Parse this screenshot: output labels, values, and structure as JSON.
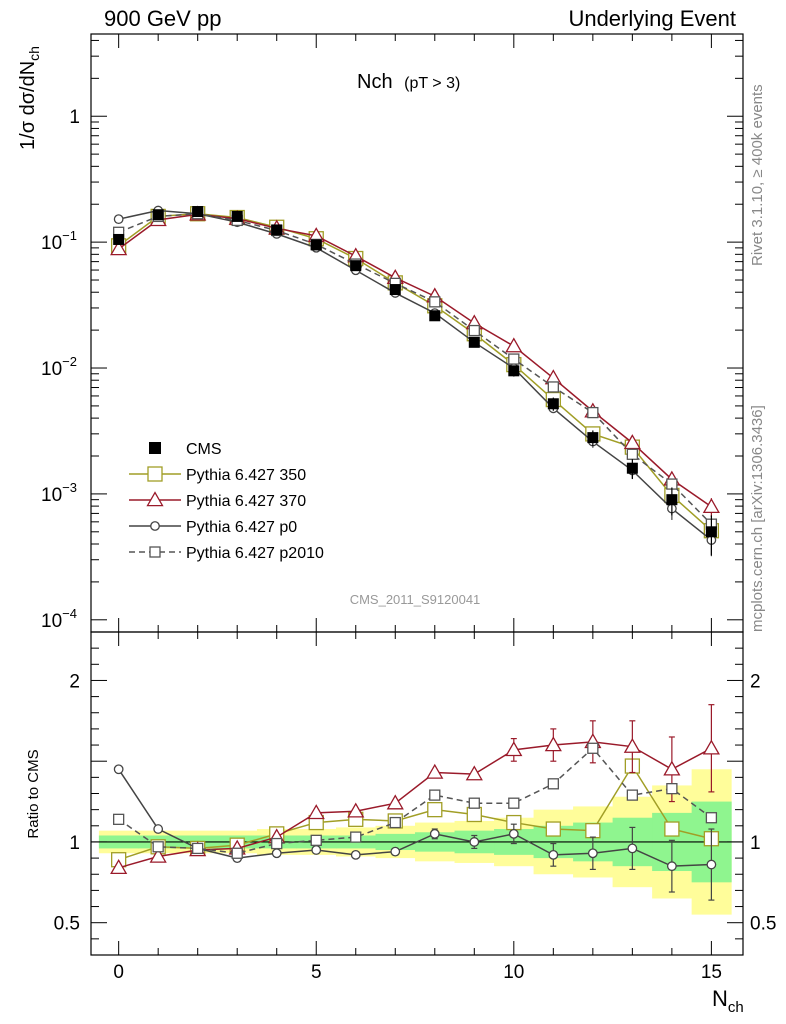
{
  "header": {
    "left": "900 GeV pp",
    "right": "Underlying Event"
  },
  "side_text": {
    "rivet": "Rivet 3.1.10, ≥ 400k events",
    "site": "mcplots.cern.ch [arXiv:1306.3436]"
  },
  "plot": {
    "title_main": "Nch",
    "title_sub": "(pT >  3)",
    "watermark": "CMS_2011_S9120041"
  },
  "chart_data": {
    "type": "scatter",
    "x": [
      0,
      1,
      2,
      3,
      4,
      5,
      6,
      7,
      8,
      9,
      10,
      11,
      12,
      13,
      14,
      15
    ],
    "xlim": [
      -0.7,
      15.8
    ],
    "xlabel": "N",
    "xlabel_sub": "ch",
    "ylabel": "1/σ dσ/dN",
    "ylabel_sub": "ch",
    "ylim": [
      8e-05,
      4.5
    ],
    "yscale": "log",
    "ratio_ylabel": "Ratio to CMS",
    "ratio_ylim": [
      0.3,
      2.3
    ],
    "x_ticks": [
      "0",
      "5",
      "10",
      "15"
    ],
    "y_ticks": [
      {
        "value": 1,
        "label": "1",
        "exp": ""
      },
      {
        "value": 0.1,
        "label": "10",
        "exp": "−1"
      },
      {
        "value": 0.01,
        "label": "10",
        "exp": "−2"
      },
      {
        "value": 0.001,
        "label": "10",
        "exp": "−3"
      },
      {
        "value": 0.0001,
        "label": "10",
        "exp": "−4"
      }
    ],
    "ratio_ticks": [
      {
        "value": 2,
        "label": "2"
      },
      {
        "value": 1,
        "label": "1"
      },
      {
        "value": 0.5,
        "label": "0.5"
      }
    ],
    "data": {
      "name": "CMS",
      "color": "#000000",
      "y": [
        0.105,
        0.165,
        0.175,
        0.16,
        0.125,
        0.095,
        0.065,
        0.042,
        0.026,
        0.016,
        0.0095,
        0.0052,
        0.0028,
        0.0016,
        0.0009,
        0.0005
      ],
      "err_rel": [
        0.05,
        0.05,
        0.05,
        0.05,
        0.05,
        0.05,
        0.06,
        0.06,
        0.07,
        0.08,
        0.1,
        0.12,
        0.14,
        0.18,
        0.25,
        0.35
      ]
    },
    "bands": {
      "green_color": "#8ff58f",
      "yellow_color": "#fffd9a",
      "green_rel": [
        0.04,
        0.04,
        0.04,
        0.04,
        0.04,
        0.04,
        0.04,
        0.05,
        0.06,
        0.07,
        0.08,
        0.1,
        0.12,
        0.15,
        0.18,
        0.25
      ],
      "yellow_rel": [
        0.07,
        0.07,
        0.07,
        0.07,
        0.08,
        0.08,
        0.09,
        0.1,
        0.12,
        0.13,
        0.15,
        0.2,
        0.22,
        0.28,
        0.35,
        0.45
      ]
    },
    "series": [
      {
        "name": "Pythia 6.427 350",
        "color": "#a19e26",
        "marker": "square-open",
        "dash": "",
        "ratio": [
          0.89,
          0.97,
          0.96,
          0.98,
          1.05,
          1.12,
          1.14,
          1.13,
          1.2,
          1.17,
          1.12,
          1.08,
          1.07,
          1.47,
          1.08,
          1.02
        ]
      },
      {
        "name": "Pythia 6.427 370",
        "color": "#9a1a2a",
        "marker": "triangle-open",
        "dash": "",
        "ratio": [
          0.84,
          0.91,
          0.95,
          0.96,
          1.03,
          1.18,
          1.19,
          1.24,
          1.43,
          1.42,
          1.57,
          1.6,
          1.62,
          1.59,
          1.45,
          1.58
        ],
        "err_abs": [
          0,
          0,
          0,
          0,
          0,
          0,
          0,
          0,
          0,
          0,
          0.07,
          0.1,
          0.13,
          0.16,
          0.2,
          0.27
        ]
      },
      {
        "name": "Pythia 6.427 p0",
        "color": "#444444",
        "marker": "circle-open",
        "dash": "",
        "ratio": [
          1.45,
          1.08,
          0.96,
          0.9,
          0.93,
          0.95,
          0.92,
          0.94,
          1.05,
          1.0,
          1.05,
          0.92,
          0.93,
          0.96,
          0.85,
          0.86
        ],
        "err_abs": [
          0,
          0,
          0,
          0,
          0,
          0,
          0,
          0,
          0.03,
          0.04,
          0.06,
          0.07,
          0.1,
          0.13,
          0.16,
          0.22
        ]
      },
      {
        "name": "Pythia 6.427 p2010",
        "color": "#555555",
        "marker": "square-open",
        "dash": "6,4",
        "ratio": [
          1.14,
          0.97,
          0.96,
          0.93,
          0.99,
          1.01,
          1.03,
          1.12,
          1.29,
          1.24,
          1.24,
          1.36,
          1.58,
          1.29,
          1.33,
          1.15
        ]
      }
    ]
  }
}
